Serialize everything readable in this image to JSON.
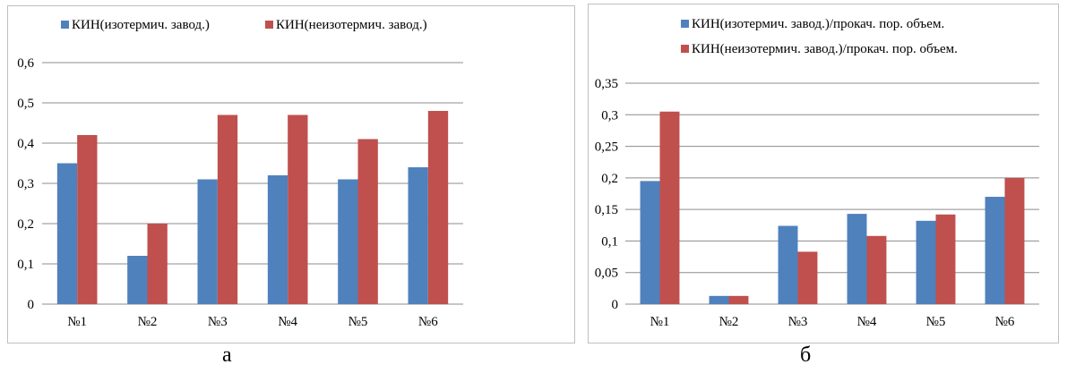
{
  "colors": {
    "series1": "#4f81bd",
    "series2": "#c0504d",
    "grid": "#8c8c8c",
    "frame": "#bfbfbf"
  },
  "captions": {
    "a": "а",
    "b": "б"
  },
  "chart_data": [
    {
      "type": "bar",
      "categories": [
        "№1",
        "№2",
        "№3",
        "№4",
        "№5",
        "№6"
      ],
      "series": [
        {
          "name": "КИН(изотермич. завод.)",
          "values": [
            0.35,
            0.12,
            0.31,
            0.32,
            0.31,
            0.34
          ]
        },
        {
          "name": "КИН(неизотермич. завод.)",
          "values": [
            0.42,
            0.2,
            0.47,
            0.47,
            0.41,
            0.48
          ]
        }
      ],
      "ylim": [
        0,
        0.6
      ],
      "yticks": [
        "0",
        "0,1",
        "0,2",
        "0,3",
        "0,4",
        "0,5",
        "0,6"
      ],
      "grid": true,
      "legend": "top"
    },
    {
      "type": "bar",
      "categories": [
        "№1",
        "№2",
        "№3",
        "№4",
        "№5",
        "№6"
      ],
      "series": [
        {
          "name": "КИН(изотермич. завод.)/прокач. пор. объем.",
          "values": [
            0.195,
            0.013,
            0.124,
            0.143,
            0.132,
            0.17
          ]
        },
        {
          "name": "КИН(неизотермич. завод.)/прокач. пор. объем.",
          "values": [
            0.305,
            0.013,
            0.083,
            0.108,
            0.142,
            0.2
          ]
        }
      ],
      "ylim": [
        0,
        0.35
      ],
      "yticks": [
        "0",
        "0,05",
        "0,1",
        "0,15",
        "0,2",
        "0,25",
        "0,3",
        "0,35"
      ],
      "grid": true,
      "legend": "top"
    }
  ]
}
